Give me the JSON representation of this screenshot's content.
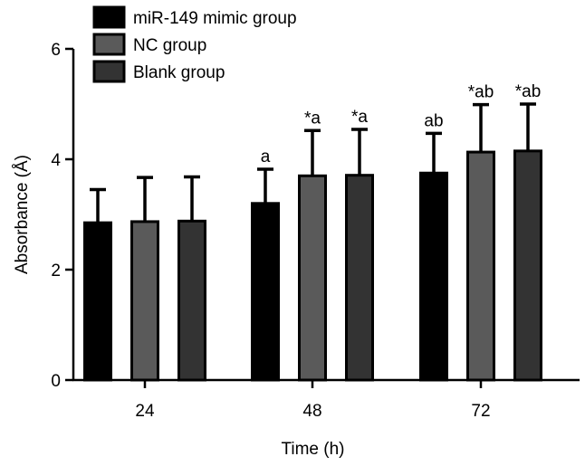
{
  "chart_data": {
    "type": "bar",
    "xlabel": "Time (h)",
    "ylabel": "Absorbance (Å)",
    "ylim": [
      0,
      6
    ],
    "yticks": [
      0,
      2,
      4,
      6
    ],
    "categories": [
      "24",
      "48",
      "72"
    ],
    "legend_position": "top-left",
    "series": [
      {
        "name": "miR-149 mimic group",
        "color": "#000000",
        "values": [
          2.85,
          3.2,
          3.75
        ],
        "errors": [
          0.6,
          0.62,
          0.72
        ],
        "annotations": [
          "",
          "a",
          "ab"
        ]
      },
      {
        "name": "NC group",
        "color": "#5a5a5a",
        "values": [
          2.87,
          3.7,
          4.13
        ],
        "errors": [
          0.8,
          0.82,
          0.86
        ],
        "annotations": [
          "",
          "*a",
          "*ab"
        ]
      },
      {
        "name": "Blank group",
        "color": "#333333",
        "values": [
          2.88,
          3.71,
          4.15
        ],
        "errors": [
          0.8,
          0.83,
          0.85
        ],
        "annotations": [
          "",
          "*a",
          "*ab"
        ]
      }
    ]
  }
}
